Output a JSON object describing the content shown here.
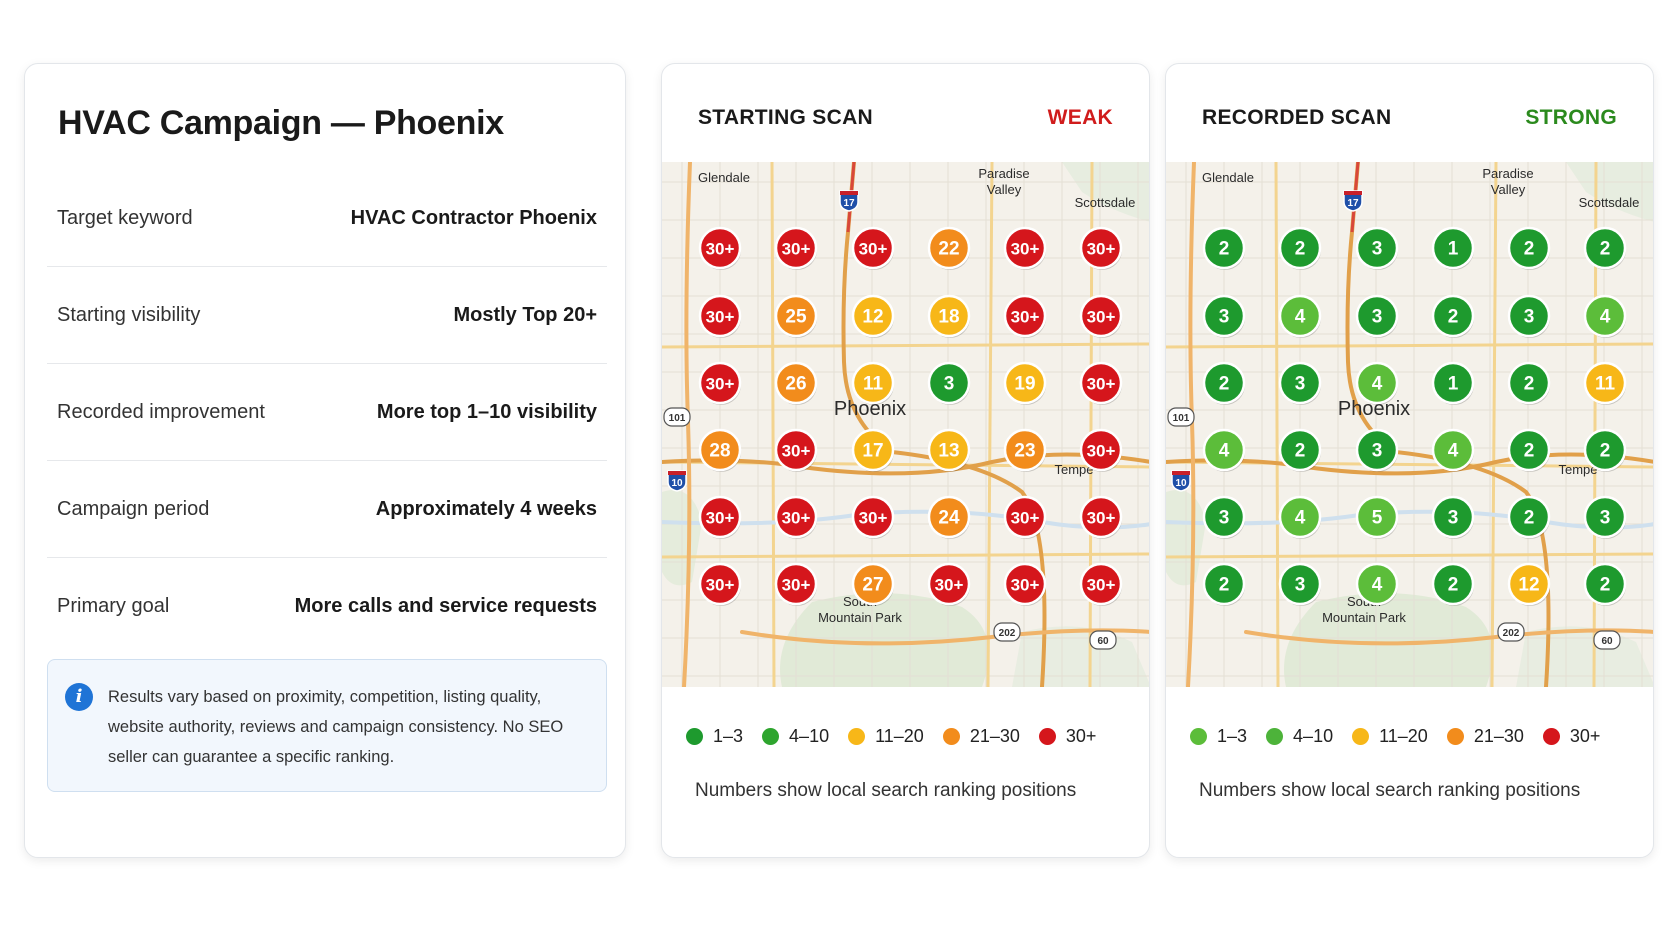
{
  "info": {
    "title": "HVAC Campaign — Phoenix",
    "rows": [
      {
        "label": "Target keyword",
        "value": "HVAC Contractor Phoenix"
      },
      {
        "label": "Starting visibility",
        "value": "Mostly Top 20+"
      },
      {
        "label": "Recorded improvement",
        "value": "More top 1–10 visibility"
      },
      {
        "label": "Campaign period",
        "value": "Approximately 4 weeks"
      },
      {
        "label": "Primary goal",
        "value": "More calls and service requests"
      }
    ],
    "notice": "Results vary based on proximity, competition, listing quality, website authority, reviews and campaign consistency. No SEO seller can guarantee a specific ranking."
  },
  "map_labels": {
    "glendale": "Glendale",
    "paradise_valley": [
      "Paradise",
      "Valley"
    ],
    "scottsdale": "Scottsdale",
    "phoenix": "Phoenix",
    "tempe": "Tempe",
    "south_mountain": [
      "South",
      "Mountain Park"
    ],
    "highways": {
      "i17": "17",
      "i10": "10",
      "sr101": "101",
      "sr202": "202",
      "us60": "60"
    }
  },
  "colors": {
    "rank_1_3": "#1e9a2e",
    "rank_4_10": "#5cbd3a",
    "rank_11_20": "#f7b718",
    "rank_21_30": "#f28c1c",
    "rank_30_plus": "#d5161c",
    "weak": "#d01c1c",
    "strong": "#2b8a1d"
  },
  "scans": {
    "start": {
      "title": "STARTING SCAN",
      "status": "WEAK",
      "grid": [
        [
          "30+",
          "30+",
          "30+",
          "22",
          "30+",
          "30+"
        ],
        [
          "30+",
          "25",
          "12",
          "18",
          "30+",
          "30+"
        ],
        [
          "30+",
          "26",
          "11",
          "3",
          "19",
          "30+"
        ],
        [
          "28",
          "30+",
          "17",
          "13",
          "23",
          "30+"
        ],
        [
          "30+",
          "30+",
          "30+",
          "24",
          "30+",
          "30+"
        ],
        [
          "30+",
          "30+",
          "27",
          "30+",
          "30+",
          "30+"
        ]
      ],
      "legend": [
        {
          "label": "1–3",
          "color": "#1e9a2e"
        },
        {
          "label": "4–10",
          "color": "#2ea52e"
        },
        {
          "label": "11–20",
          "color": "#f7b718"
        },
        {
          "label": "21–30",
          "color": "#f28c1c"
        },
        {
          "label": "30+",
          "color": "#d5161c"
        }
      ],
      "note": "Numbers show local search ranking positions"
    },
    "recorded": {
      "title": "RECORDED SCAN",
      "status": "STRONG",
      "grid": [
        [
          "2",
          "2",
          "3",
          "1",
          "2",
          "2"
        ],
        [
          "3",
          "4",
          "3",
          "2",
          "3",
          "4"
        ],
        [
          "2",
          "3",
          "4",
          "1",
          "2",
          "11"
        ],
        [
          "4",
          "2",
          "3",
          "4",
          "2",
          "2"
        ],
        [
          "3",
          "4",
          "5",
          "3",
          "2",
          "3"
        ],
        [
          "2",
          "3",
          "4",
          "2",
          "12",
          "2"
        ]
      ],
      "legend": [
        {
          "label": "1–3",
          "color": "#5cbd3a"
        },
        {
          "label": "4–10",
          "color": "#4db33a"
        },
        {
          "label": "11–20",
          "color": "#f7b718"
        },
        {
          "label": "21–30",
          "color": "#f28c1c"
        },
        {
          "label": "30+",
          "color": "#d5161c"
        }
      ],
      "note": "Numbers show local search ranking positions"
    }
  }
}
